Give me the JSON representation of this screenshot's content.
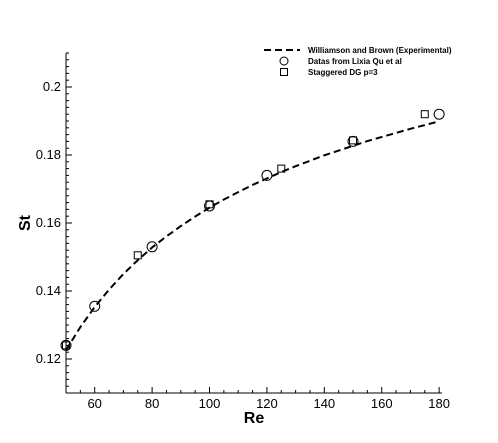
{
  "chart_data": {
    "type": "scatter",
    "title": "",
    "xlabel": "Re",
    "ylabel": "St",
    "xlim": [
      50,
      181
    ],
    "ylim": [
      0.11,
      0.21
    ],
    "xticks": [
      60,
      80,
      100,
      120,
      140,
      160,
      180
    ],
    "xtick_labels": [
      "60",
      "80",
      "100",
      "120",
      "140",
      "160",
      "180"
    ],
    "yticks": [
      0.12,
      0.14,
      0.16,
      0.18,
      0.2
    ],
    "ytick_labels": [
      "0.12",
      "0.14",
      "0.16",
      "0.18",
      "0.2"
    ],
    "grid": false,
    "legend_position": "top-right",
    "series": [
      {
        "name": "Williamson and Brown (Experimental)",
        "kind": "dashed-line",
        "color": "#000000",
        "x": [
          50,
          55,
          60,
          65,
          70,
          75,
          80,
          85,
          90,
          95,
          100,
          105,
          110,
          115,
          120,
          125,
          130,
          135,
          140,
          145,
          150,
          155,
          160,
          165,
          170,
          175,
          180
        ],
        "y": [
          0.1226,
          0.1294,
          0.1353,
          0.1404,
          0.145,
          0.1491,
          0.1528,
          0.1561,
          0.1591,
          0.1619,
          0.1645,
          0.1669,
          0.1691,
          0.1712,
          0.1731,
          0.175,
          0.1767,
          0.1783,
          0.1799,
          0.1813,
          0.1827,
          0.1841,
          0.1853,
          0.1865,
          0.1877,
          0.1888,
          0.1899
        ]
      },
      {
        "name": "Datas from Lixia Qu et al",
        "kind": "circle-markers",
        "color": "#000000",
        "x": [
          50,
          60,
          80,
          100,
          120,
          150,
          180
        ],
        "y": [
          0.124,
          0.1355,
          0.153,
          0.165,
          0.174,
          0.184,
          0.192
        ]
      },
      {
        "name": "Staggered DG p=3",
        "kind": "square-markers",
        "color": "#000000",
        "x": [
          50,
          75,
          100,
          125,
          150,
          175
        ],
        "y": [
          0.124,
          0.1505,
          0.1655,
          0.176,
          0.1843,
          0.192
        ]
      }
    ]
  }
}
